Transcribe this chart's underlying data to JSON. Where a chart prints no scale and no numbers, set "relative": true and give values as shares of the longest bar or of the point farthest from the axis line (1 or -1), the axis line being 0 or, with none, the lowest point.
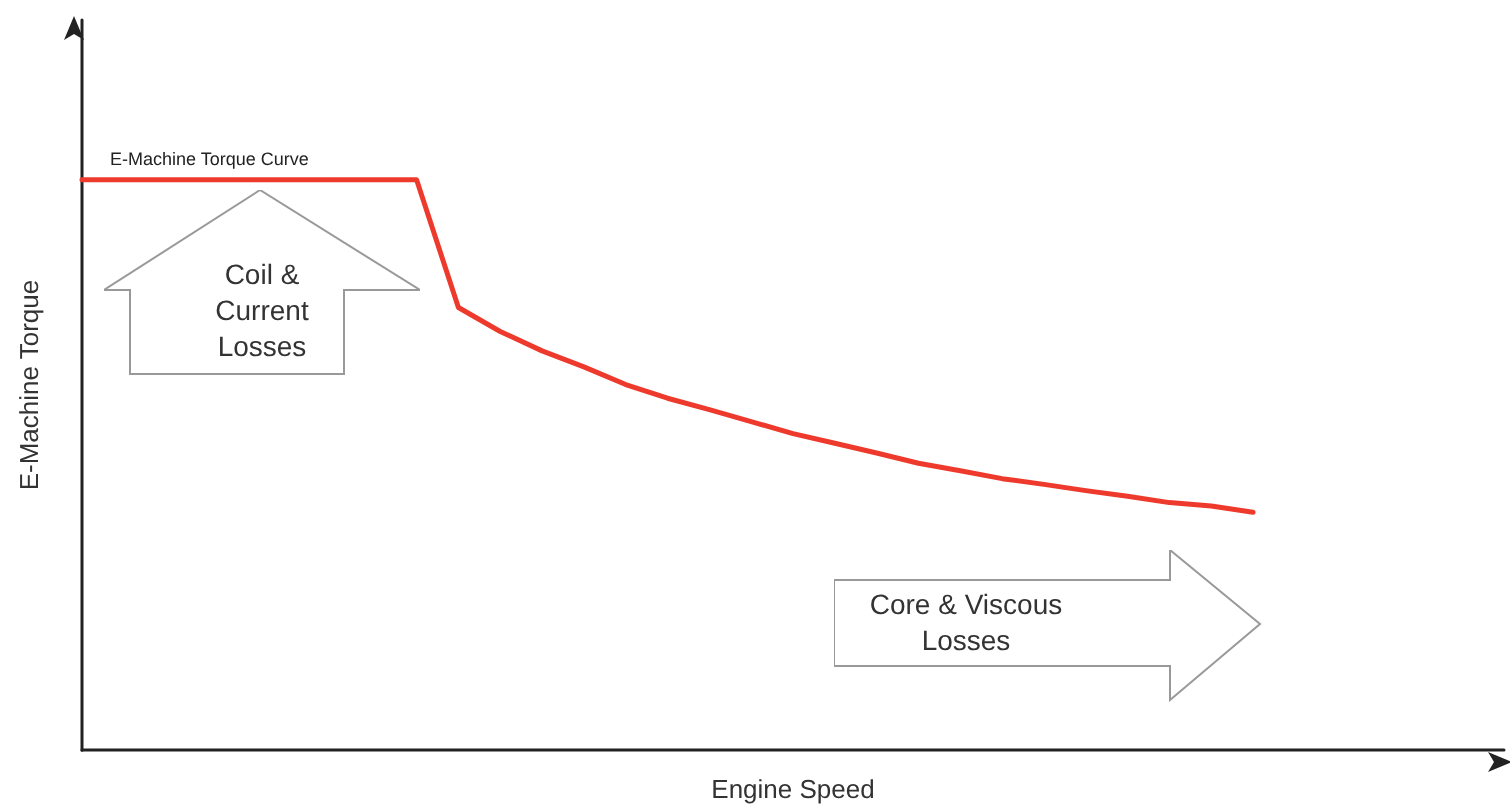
{
  "chart_data": {
    "type": "line",
    "relative": true,
    "xlabel": "Engine Speed",
    "ylabel": "E-Machine Torque",
    "categories": [
      null,
      null,
      null,
      null,
      null,
      null,
      null,
      null,
      null,
      null,
      null,
      null,
      null,
      null,
      null,
      null,
      null,
      null,
      null,
      null,
      null,
      null,
      null,
      null,
      null,
      null,
      null,
      null,
      null,
      null,
      null,
      null,
      null,
      null,
      null
    ],
    "series": [
      {
        "name": "E-Machine Torque Curve",
        "color": "#ee3a2c",
        "values": [
          1,
          1,
          1,
          1,
          1,
          1,
          1,
          1,
          1,
          0.776,
          0.734,
          0.7,
          0.672,
          0.641,
          0.617,
          0.597,
          0.576,
          0.555,
          0.538,
          0.521,
          0.503,
          0.49,
          0.476,
          0.466,
          0.455,
          0.445,
          0.434,
          0.428,
          0.417,
          null,
          null,
          null,
          null,
          null,
          null
        ]
      }
    ],
    "annotations": [
      "Coil & Current Losses",
      "Core & Viscous Losses"
    ],
    "grid": false,
    "legend": false,
    "marker": "none",
    "line_style": "solid"
  }
}
